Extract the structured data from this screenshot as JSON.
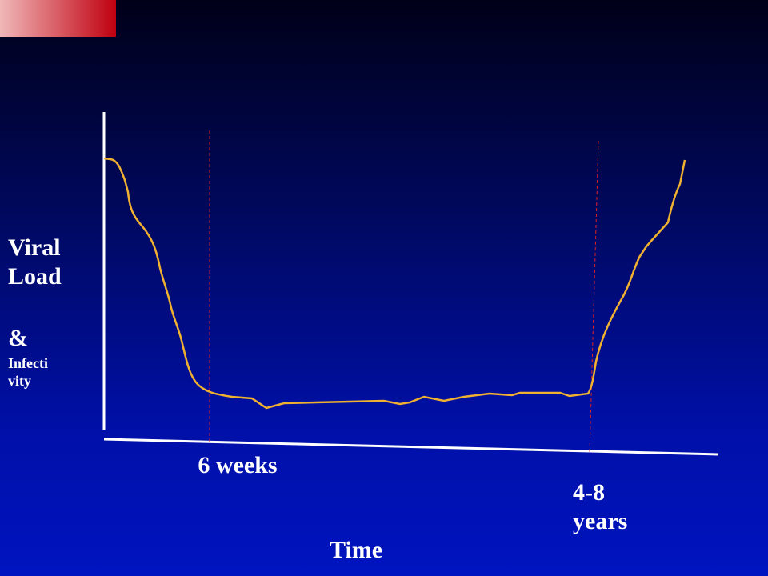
{
  "y_label": "Viral Load",
  "y_label_extra_symbol": "&",
  "y_label_extra": "Infectivity",
  "markers": [
    "6 weeks",
    "4-8 years"
  ],
  "x_label": "Time"
}
